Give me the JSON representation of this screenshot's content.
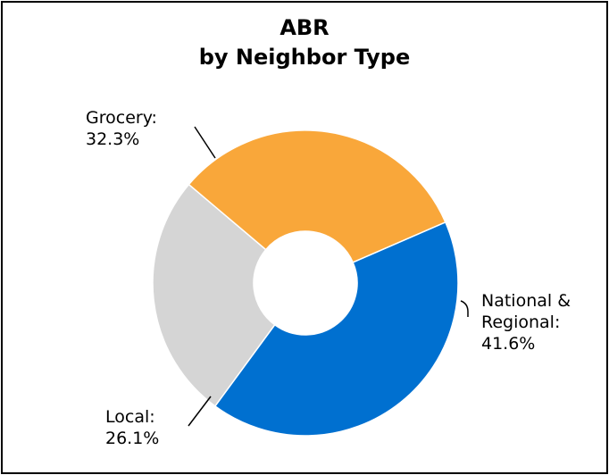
{
  "chart_data": {
    "type": "pie",
    "variant": "donut",
    "title_line1": "ABR",
    "title_line2": "by Neighbor Type",
    "slices": [
      {
        "name": "National & Regional",
        "label_lines": [
          "National &",
          "Regional:",
          "41.6%"
        ],
        "value": 41.6,
        "color": "#0070d0"
      },
      {
        "name": "Local",
        "label_lines": [
          "Local:",
          "26.1%"
        ],
        "value": 26.1,
        "color": "#d5d5d5"
      },
      {
        "name": "Grocery",
        "label_lines": [
          "Grocery:",
          "32.3%"
        ],
        "value": 32.3,
        "color": "#f9a73a"
      }
    ],
    "legend": "none",
    "grid": false
  }
}
